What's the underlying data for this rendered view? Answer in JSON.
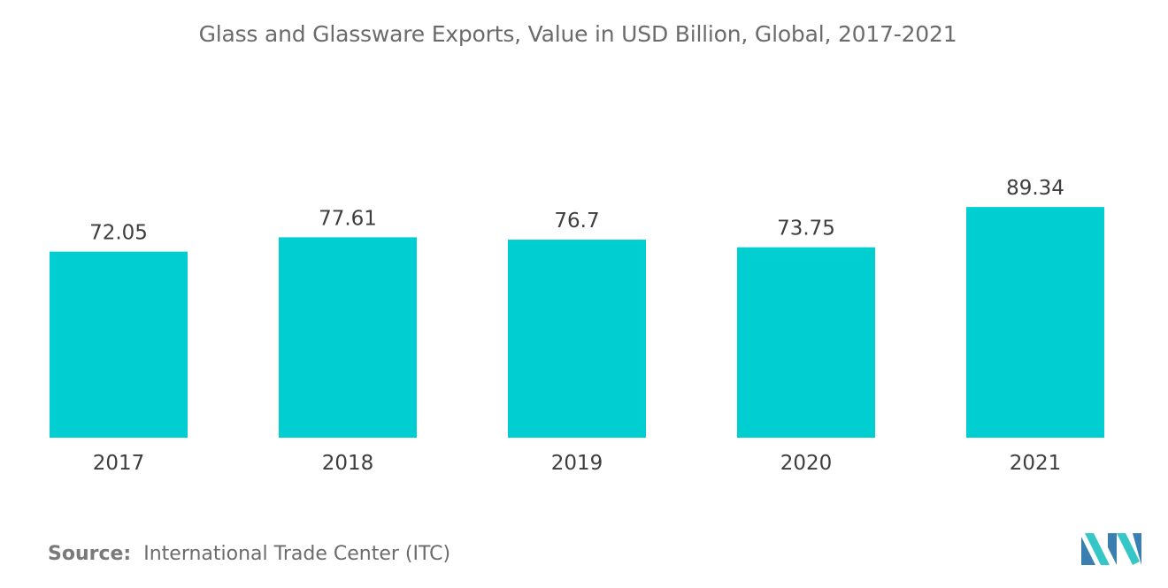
{
  "chart_data": {
    "type": "bar",
    "title": "Glass and Glassware Exports, Value in USD Billion, Global, 2017-2021",
    "xlabel": "",
    "ylabel": "",
    "categories": [
      "2017",
      "2018",
      "2019",
      "2020",
      "2021"
    ],
    "values": [
      72.05,
      77.61,
      76.7,
      73.75,
      89.34
    ],
    "value_labels": [
      "72.05",
      "77.61",
      "76.7",
      "73.75",
      "89.34"
    ],
    "ylim": [
      0,
      100
    ],
    "grid": false,
    "legend": "none",
    "bar_color": "#00ced1"
  },
  "source": {
    "label": "Source:",
    "text": "International Trade Center (ITC)"
  },
  "logo": {
    "icon": "mordor-intelligence-logo",
    "colors": [
      "#3a7fb0",
      "#35c6c8"
    ]
  }
}
